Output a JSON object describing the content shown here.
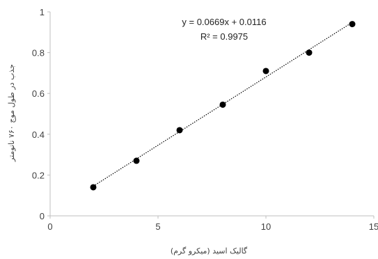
{
  "chart_data": {
    "type": "scatter",
    "xlabel": "گالیک اسید (میکرو گرم)",
    "ylabel": "جذب در طول موج ۷۶۰ نانومتر",
    "xlim": [
      0,
      15
    ],
    "ylim": [
      0,
      1
    ],
    "x_ticks": [
      0,
      5,
      10,
      15
    ],
    "y_ticks": [
      0,
      0.2,
      0.4,
      0.6,
      0.8,
      1
    ],
    "x_tick_labels": [
      "0",
      "5",
      "10",
      "15"
    ],
    "y_tick_labels": [
      "0",
      "0.2",
      "0.4",
      "0.6",
      "0.8",
      "1"
    ],
    "grid": false,
    "points": [
      {
        "x": 2,
        "y": 0.14
      },
      {
        "x": 4,
        "y": 0.27
      },
      {
        "x": 6,
        "y": 0.42
      },
      {
        "x": 8,
        "y": 0.545
      },
      {
        "x": 10,
        "y": 0.71
      },
      {
        "x": 12,
        "y": 0.8
      },
      {
        "x": 14,
        "y": 0.94
      }
    ],
    "trendline": {
      "type": "linear",
      "slope": 0.0669,
      "intercept": 0.0116,
      "x_range": [
        2,
        14
      ],
      "style": "dotted"
    },
    "annotations": {
      "equation": "y = 0.0669x + 0.0116",
      "r_squared": "R² = 0.9975"
    },
    "colors": {
      "marker": "#000000",
      "axis": "#bfbfbf",
      "trendline": "#000000",
      "text": "#404040"
    }
  }
}
